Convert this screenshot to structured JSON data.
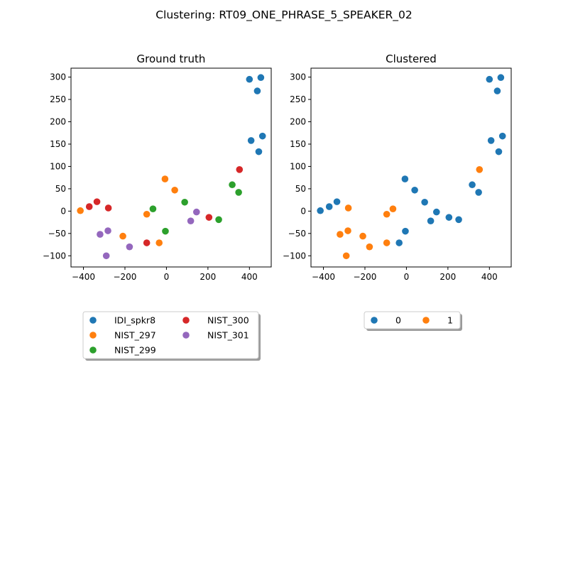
{
  "figure": {
    "title": "Clustering: RT09_ONE_PHRASE_5_SPEAKER_02"
  },
  "colors": {
    "blue": "#1f77b4",
    "orange": "#ff7f0e",
    "green": "#2ca02c",
    "red": "#d62728",
    "purple": "#9467bd"
  },
  "chart_data": [
    {
      "type": "scatter",
      "title": "Ground truth",
      "xlim": [
        -460,
        505
      ],
      "ylim": [
        -125,
        320
      ],
      "xticks": [
        -400,
        -200,
        0,
        200,
        400
      ],
      "yticks": [
        -100,
        -50,
        0,
        50,
        100,
        150,
        200,
        250,
        300
      ],
      "grid": false,
      "legend": {
        "placement": "below",
        "columns": 2
      },
      "series": [
        {
          "name": "IDI_spkr8",
          "color": "#1f77b4",
          "x": [
            400,
            455,
            438,
            408,
            445,
            463
          ],
          "y": [
            295,
            299,
            269,
            158,
            133,
            168
          ]
        },
        {
          "name": "NIST_297",
          "color": "#ff7f0e",
          "x": [
            -415,
            -7,
            40,
            -95,
            -210,
            -35
          ],
          "y": [
            1,
            72,
            47,
            -7,
            -56,
            -71
          ]
        },
        {
          "name": "NIST_299",
          "color": "#2ca02c",
          "x": [
            -65,
            88,
            -5,
            317,
            348,
            252
          ],
          "y": [
            5,
            20,
            -45,
            59,
            42,
            -19
          ]
        },
        {
          "name": "NIST_300",
          "color": "#d62728",
          "x": [
            -372,
            -335,
            -280,
            -95,
            205,
            352
          ],
          "y": [
            10,
            21,
            7,
            -71,
            -14,
            93
          ]
        },
        {
          "name": "NIST_301",
          "color": "#9467bd",
          "x": [
            -320,
            -282,
            -290,
            -178,
            117,
            145
          ],
          "y": [
            -52,
            -44,
            -100,
            -80,
            -22,
            -2
          ]
        }
      ]
    },
    {
      "type": "scatter",
      "title": "Clustered",
      "xlim": [
        -460,
        505
      ],
      "ylim": [
        -125,
        320
      ],
      "xticks": [
        -400,
        -200,
        0,
        200,
        400
      ],
      "yticks": [
        -100,
        -50,
        0,
        50,
        100,
        150,
        200,
        250,
        300
      ],
      "grid": false,
      "legend": {
        "placement": "below",
        "columns": 2
      },
      "series": [
        {
          "name": "0",
          "color": "#1f77b4",
          "x": [
            400,
            455,
            438,
            408,
            445,
            463,
            -415,
            -372,
            -335,
            -7,
            40,
            88,
            -5,
            -35,
            117,
            145,
            205,
            252,
            317,
            348
          ],
          "y": [
            295,
            299,
            269,
            158,
            133,
            168,
            1,
            10,
            21,
            72,
            47,
            20,
            -45,
            -71,
            -22,
            -2,
            -14,
            -19,
            59,
            42
          ]
        },
        {
          "name": "1",
          "color": "#ff7f0e",
          "x": [
            -320,
            -280,
            -282,
            -290,
            -210,
            -178,
            -95,
            -95,
            -65,
            352
          ],
          "y": [
            -52,
            7,
            -44,
            -100,
            -56,
            -80,
            -7,
            -71,
            5,
            93
          ]
        }
      ]
    }
  ]
}
